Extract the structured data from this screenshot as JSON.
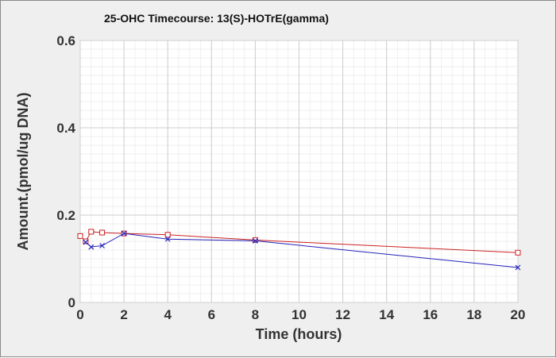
{
  "chart_data": {
    "type": "line",
    "title": "25-OHC Timecourse: 13(S)-HOTrE(gamma)",
    "xlabel": "Time (hours)",
    "ylabel": "Amount.(pmol/ug DNA)",
    "xlim": [
      0,
      20
    ],
    "ylim": [
      0,
      0.6
    ],
    "xticks": [
      0,
      2,
      4,
      6,
      8,
      10,
      12,
      14,
      16,
      18,
      20
    ],
    "yticks": [
      0,
      0.2,
      0.4,
      0.6
    ],
    "ytick_labels": [
      "0",
      "0.2",
      "0.4",
      "0.6"
    ],
    "grid": true,
    "legend": "none",
    "series": [
      {
        "color": "#cc2222",
        "marker": "square",
        "x": [
          0,
          0.25,
          0.5,
          1,
          2,
          4,
          8,
          20
        ],
        "y": [
          0.152,
          0.14,
          0.162,
          0.16,
          0.158,
          0.155,
          0.143,
          0.114
        ]
      },
      {
        "color": "#2222bb",
        "marker": "x",
        "x": [
          0.25,
          0.5,
          1,
          2,
          4,
          8,
          20
        ],
        "y": [
          0.138,
          0.127,
          0.13,
          0.158,
          0.145,
          0.141,
          0.08
        ]
      }
    ]
  }
}
